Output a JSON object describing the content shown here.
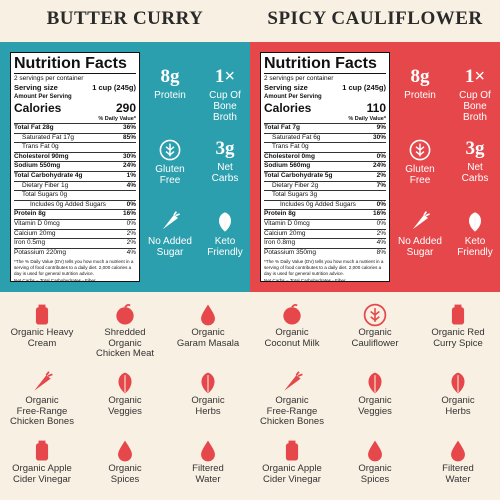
{
  "panels": [
    {
      "title": "BUTTER CURRY",
      "label": {
        "heading": "Nutrition Facts",
        "servings": "2 servings per container",
        "serving_size_label": "Serving size",
        "serving_size": "1 cup (245g)",
        "amount_label": "Amount Per Serving",
        "calories_label": "Calories",
        "calories": "290",
        "dv_label": "% Daily Value*",
        "rows": [
          [
            "Total Fat 28g",
            "36%"
          ],
          [
            "Saturated Fat 17g",
            "85%"
          ],
          [
            "Trans Fat 0g",
            ""
          ],
          [
            "Cholesterol 90mg",
            "30%"
          ],
          [
            "Sodium 550mg",
            "24%"
          ],
          [
            "Total Carbohydrate 4g",
            "1%"
          ],
          [
            "Dietary Fiber 1g",
            "4%"
          ],
          [
            "Total Sugars 0g",
            ""
          ],
          [
            "Includes 0g Added Sugars",
            "0%"
          ],
          [
            "Protein 8g",
            "16%"
          ]
        ],
        "vitamins": [
          [
            "Vitamin D 0mcg",
            "0%"
          ],
          [
            "Calcium 20mg",
            "2%"
          ],
          [
            "Iron 0.5mg",
            "2%"
          ],
          [
            "Potassium 220mg",
            "4%"
          ]
        ],
        "footnote": "*The % Daily Value (DV) tells you how much a nutrient in a serving of food contributes to a daily diet. 2,000 calories a day is used for general nutrition advice.",
        "net_carbs_note": "Net Carbs = Total Carbohydrates - Fiber"
      },
      "badges": [
        {
          "value": "8g",
          "lines": [
            "Protein"
          ]
        },
        {
          "value": "1×",
          "lines": [
            "Cup Of",
            "Bone",
            "Broth"
          ]
        },
        {
          "lines": [
            "Gluten",
            "Free"
          ]
        },
        {
          "value": "3g",
          "lines": [
            "Net",
            "Carbs"
          ]
        },
        {
          "lines": [
            "No Added",
            "Sugar"
          ]
        },
        {
          "lines": [
            "Keto",
            "Friendly"
          ]
        }
      ],
      "ingredients": [
        [
          "Organic Heavy",
          "Cream"
        ],
        [
          "Shredded",
          "Organic",
          "Chicken Meat"
        ],
        [
          "Organic",
          "Garam Masala"
        ],
        [
          "Organic",
          "Free-Range",
          "Chicken Bones"
        ],
        [
          "Organic",
          "Veggies"
        ],
        [
          "Organic",
          "Herbs"
        ],
        [
          "Organic Apple",
          "Cider Vinegar"
        ],
        [
          "Organic",
          "Spices"
        ],
        [
          "Filtered",
          "Water"
        ]
      ]
    },
    {
      "title": "SPICY CAULIFLOWER",
      "label": {
        "heading": "Nutrition Facts",
        "servings": "2 servings per container",
        "serving_size_label": "Serving size",
        "serving_size": "1 cup (245g)",
        "amount_label": "Amount Per Serving",
        "calories_label": "Calories",
        "calories": "110",
        "dv_label": "% Daily Value*",
        "rows": [
          [
            "Total Fat 7g",
            "9%"
          ],
          [
            "Saturated Fat 6g",
            "30%"
          ],
          [
            "Trans Fat 0g",
            ""
          ],
          [
            "Cholesterol 0mg",
            "0%"
          ],
          [
            "Sodium 560mg",
            "24%"
          ],
          [
            "Total Carbohydrate 5g",
            "2%"
          ],
          [
            "Dietary Fiber 2g",
            "7%"
          ],
          [
            "Total Sugars 3g",
            ""
          ],
          [
            "Includes 0g Added Sugars",
            "0%"
          ],
          [
            "Protein 8g",
            "16%"
          ]
        ],
        "vitamins": [
          [
            "Vitamin D 0mcg",
            "0%"
          ],
          [
            "Calcium 20mg",
            "2%"
          ],
          [
            "Iron 0.8mg",
            "4%"
          ],
          [
            "Potassium 350mg",
            "8%"
          ]
        ],
        "footnote": "*The % Daily Value (DV) tells you how much a nutrient in a serving of food contributes to a daily diet. 2,000 calories a day is used for general nutrition advice.",
        "net_carbs_note": "Net Carbs = Total Carbohydrates - Fiber"
      },
      "badges": [
        {
          "value": "8g",
          "lines": [
            "Protein"
          ]
        },
        {
          "value": "1×",
          "lines": [
            "Cup Of",
            "Bone",
            "Broth"
          ]
        },
        {
          "lines": [
            "Gluten",
            "Free"
          ]
        },
        {
          "value": "3g",
          "lines": [
            "Net",
            "Carbs"
          ]
        },
        {
          "lines": [
            "No Added",
            "Sugar"
          ]
        },
        {
          "lines": [
            "Keto",
            "Friendly"
          ]
        }
      ],
      "ingredients": [
        [
          "Organic",
          "Coconut Milk"
        ],
        [
          "Organic",
          "Cauliflower"
        ],
        [
          "Organic Red",
          "Curry Spice"
        ],
        [
          "Organic",
          "Free-Range",
          "Chicken Bones"
        ],
        [
          "Organic",
          "Veggies"
        ],
        [
          "Organic",
          "Herbs"
        ],
        [
          "Organic Apple",
          "Cider Vinegar"
        ],
        [
          "Organic",
          "Spices"
        ],
        [
          "Filtered",
          "Water"
        ]
      ]
    }
  ]
}
